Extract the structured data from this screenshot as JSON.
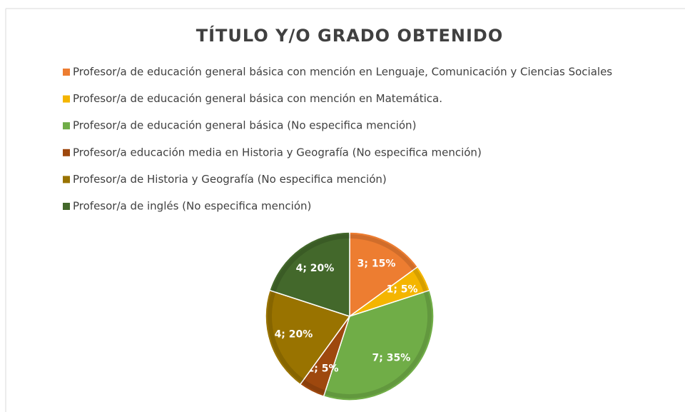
{
  "chart_data": {
    "type": "pie",
    "title": "TÍTULO Y/O GRADO OBTENIDO",
    "categories": [
      "Profesor/a de educación general básica con mención en Lenguaje, Comunicación y Ciencias Sociales",
      "Profesor/a de educación general básica con mención en Matemática.",
      "Profesor/a de educación general básica (No especifica mención)",
      "Profesor/a educación media en Historia y Geografía (No especifica mención)",
      "Profesor/a de Historia y Geografía (No especifica mención)",
      "Profesor/a de inglés (No especifica mención)"
    ],
    "values": [
      3,
      1,
      7,
      1,
      4,
      4
    ],
    "value_labels": [
      "3; 15%",
      "1; 5%",
      "7; 35%",
      "1; 5%",
      "4; 20%",
      "4; 20%"
    ],
    "colors": [
      "#ed7d31",
      "#f4b500",
      "#70ad47",
      "#9e480e",
      "#997300",
      "#43682b"
    ],
    "legend": "top"
  }
}
